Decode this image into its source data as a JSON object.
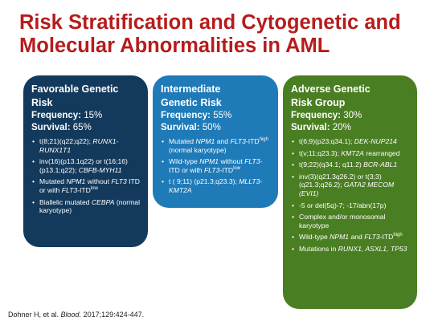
{
  "title_line1": "Risk Stratification and Cytogenetic and",
  "title_line2": "Molecular Abnormalities in AML",
  "panels": {
    "favorable": {
      "heading_line1": "Favorable Genetic",
      "heading_line2": "Risk",
      "frequency_label": "Frequency:",
      "frequency_value": "15%",
      "survival_label": "Survival:",
      "survival_value": "65%",
      "item1_a": "t(8;21)(q22;q22); ",
      "item1_b": "RUNX1-RUNX1T1",
      "item2_a": "inv(16)(p13.1q22) or t(16;16)(p13.1;q22); ",
      "item2_b": "CBFB-MYH11",
      "item3_a": "Mutated ",
      "item3_b": "NPM1",
      "item3_c": " without ",
      "item3_d": "FLT3",
      "item3_e": " ITD or with ",
      "item3_f": "FLT3",
      "item3_g": "-ITD",
      "item3_h": "low",
      "item4_a": "Biallelic mutated ",
      "item4_b": "CEBPA",
      "item4_c": " (normal karyotype)"
    },
    "intermediate": {
      "heading_line1": "Intermediate",
      "heading_line2": "Genetic Risk",
      "frequency_label": "Frequency:",
      "frequency_value": "55%",
      "survival_label": "Survival:",
      "survival_value": "50%",
      "item1_a": "Mutated ",
      "item1_b": "NPM1",
      "item1_c": " and ",
      "item1_d": "FLT3",
      "item1_e": "-ITD",
      "item1_f": "high",
      "item1_g": " (normal karyotype)",
      "item2_a": "Wild-type ",
      "item2_b": "NPM1",
      "item2_c": " without ",
      "item2_d": "FLT3",
      "item2_e": "-ITD or with ",
      "item2_f": "FLT3",
      "item2_g": "-ITD",
      "item2_h": "low",
      "item3_a": "t ( 9;11) (p21.3;q23.3); ",
      "item3_b": "MLLT3-KMT2A"
    },
    "adverse": {
      "heading_line1": "Adverse Genetic",
      "heading_line2": "Risk Group",
      "frequency_label": "Frequency:",
      "frequency_value": "30%",
      "survival_label": "Survival:",
      "survival_value": "20%",
      "item1_a": "t(6;9)(p23;q34.1); ",
      "item1_b": "DEK-NUP214",
      "item2_a": "t(v;11;q23.3); ",
      "item2_b": "KMT2A",
      "item2_c": " rearranged",
      "item3_a": "t(9;22)(q34.1; q11.2) ",
      "item3_b": "BCR-ABL1",
      "item4_a": "inv(3)(q21.3q26.2) or t(3;3)(q21.3;q26.2); ",
      "item4_b": "GATA2 MECOM (EVI1)",
      "item5": "-5 or del(5q)-7; -17/abn(17p)",
      "item6": "Complex and/or monosomal karyotype",
      "item7_a": "Wild-type ",
      "item7_b": "NPM1",
      "item7_c": " and ",
      "item7_d": "FLT3",
      "item7_e": "-ITD",
      "item7_f": "high",
      "item8_a": "Mutations in ",
      "item8_b": "RUNX1, ASXL1, TP53"
    }
  },
  "citation": {
    "a": "Dohner H, et al. ",
    "b": "Blood.",
    "c": " 2017;129:424-447."
  },
  "colors": {
    "title": "#b71c1c",
    "favorable": "#133a5c",
    "intermediate": "#1f7ab8",
    "adverse": "#4a7e22"
  }
}
